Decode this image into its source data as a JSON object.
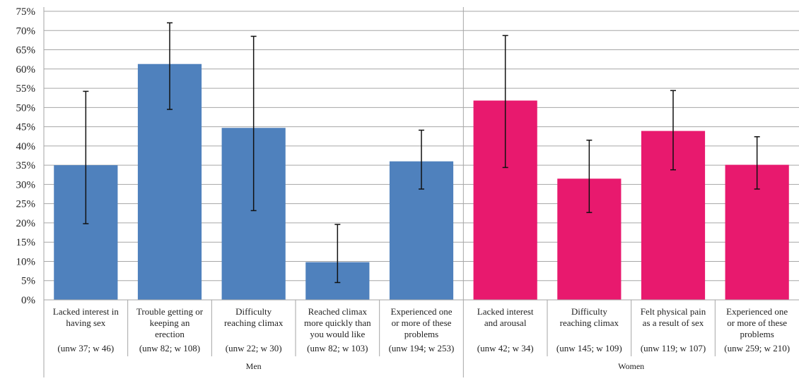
{
  "chart_data": {
    "type": "bar",
    "ylim": [
      0,
      75
    ],
    "y_ticks": [
      "0%",
      "5%",
      "10%",
      "15%",
      "20%",
      "25%",
      "30%",
      "35%",
      "40%",
      "45%",
      "50%",
      "55%",
      "60%",
      "65%",
      "70%",
      "75%"
    ],
    "grid": true,
    "colors": {
      "Men": "#4f81bd",
      "Women": "#e8196e"
    },
    "groups": [
      {
        "name": "Men",
        "categories": [
          {
            "label_lines": [
              "Lacked interest in",
              "having sex"
            ],
            "n_label": "(unw 37; w 46)",
            "value": 35,
            "err_low": 19.8,
            "err_high": 54.2
          },
          {
            "label_lines": [
              "Trouble getting or",
              "keeping an",
              "erection"
            ],
            "n_label": "(unw 82; w 108)",
            "value": 61.3,
            "err_low": 49.5,
            "err_high": 72
          },
          {
            "label_lines": [
              "Difficulty",
              "reaching climax"
            ],
            "n_label": "(unw 22; w 30)",
            "value": 44.7,
            "err_low": 23.2,
            "err_high": 68.5
          },
          {
            "label_lines": [
              "Reached climax",
              "more quickly than",
              "you would like"
            ],
            "n_label": "(unw 82; w 103)",
            "value": 9.8,
            "err_low": 4.5,
            "err_high": 19.6
          },
          {
            "label_lines": [
              "Experienced one",
              "or more of these",
              "problems"
            ],
            "n_label": "(unw 194; w 253)",
            "value": 36,
            "err_low": 28.8,
            "err_high": 44.1
          }
        ]
      },
      {
        "name": "Women",
        "categories": [
          {
            "label_lines": [
              "Lacked interest",
              "and arousal"
            ],
            "n_label": "(unw 42; w 34)",
            "value": 51.8,
            "err_low": 34.4,
            "err_high": 68.7
          },
          {
            "label_lines": [
              "Difficulty",
              "reaching climax"
            ],
            "n_label": "(unw 145; w 109)",
            "value": 31.5,
            "err_low": 22.7,
            "err_high": 41.5
          },
          {
            "label_lines": [
              "Felt physical pain",
              "as a result of sex"
            ],
            "n_label": "(unw 119; w 107)",
            "value": 43.9,
            "err_low": 33.8,
            "err_high": 54.4
          },
          {
            "label_lines": [
              "Experienced one",
              "or more of these",
              "problems"
            ],
            "n_label": "(unw 259; w 210)",
            "value": 35.1,
            "err_low": 28.8,
            "err_high": 42.4
          }
        ]
      }
    ]
  }
}
